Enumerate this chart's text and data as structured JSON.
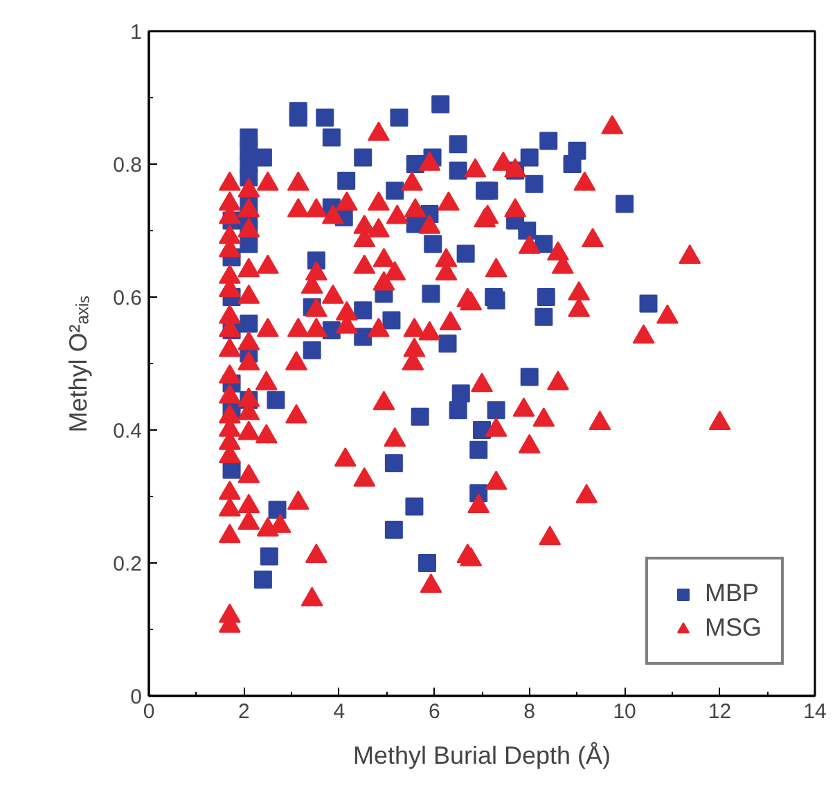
{
  "chart_data": {
    "type": "scatter",
    "xlabel": "Methyl Burial Depth (Å)",
    "ylabel": "Methyl O²ₐₓᵢₛ",
    "xlim": [
      0,
      14
    ],
    "xticks": [
      0,
      2,
      4,
      6,
      8,
      10,
      12,
      14
    ],
    "ylim": [
      0,
      1
    ],
    "yticks": [
      0,
      0.2,
      0.4,
      0.6,
      0.8,
      1
    ],
    "grid": false,
    "legend": "bottom right",
    "series": [
      {
        "name": "MBP",
        "color": "#2e45a0",
        "marker": "square",
        "x": [
          1.74,
          1.74,
          1.74,
          1.74,
          1.74,
          1.74,
          1.74,
          2.1,
          2.1,
          2.1,
          2.1,
          2.1,
          2.1,
          2.1,
          2.1,
          2.1,
          2.1,
          2.67,
          2.7,
          2.53,
          2.4,
          2.4,
          3.14,
          3.14,
          3.7,
          3.84,
          3.52,
          3.43,
          3.43,
          3.84,
          3.84,
          4.1,
          4.15,
          4.5,
          4.5,
          4.5,
          4.94,
          5.1,
          5.17,
          5.15,
          5.15,
          5.26,
          5.6,
          5.58,
          5.7,
          5.85,
          5.93,
          5.96,
          5.9,
          5.6,
          5.97,
          6.13,
          6.28,
          6.5,
          6.5,
          6.56,
          6.5,
          6.66,
          7.06,
          7.0,
          6.93,
          6.93,
          7.15,
          7.3,
          7.25,
          7.3,
          7.7,
          7.7,
          7.95,
          8.0,
          8.0,
          8.1,
          8.3,
          8.35,
          8.3,
          8.4,
          8.9,
          9.0,
          10.0,
          10.5
        ],
        "values": [
          0.715,
          0.66,
          0.6,
          0.55,
          0.47,
          0.43,
          0.34,
          0.84,
          0.82,
          0.8,
          0.78,
          0.74,
          0.71,
          0.68,
          0.56,
          0.515,
          0.445,
          0.445,
          0.28,
          0.21,
          0.175,
          0.81,
          0.88,
          0.87,
          0.87,
          0.84,
          0.655,
          0.585,
          0.52,
          0.55,
          0.735,
          0.72,
          0.775,
          0.81,
          0.58,
          0.54,
          0.605,
          0.565,
          0.76,
          0.35,
          0.25,
          0.87,
          0.8,
          0.285,
          0.42,
          0.2,
          0.605,
          0.81,
          0.725,
          0.71,
          0.68,
          0.89,
          0.53,
          0.83,
          0.79,
          0.455,
          0.43,
          0.665,
          0.76,
          0.4,
          0.37,
          0.305,
          0.76,
          0.43,
          0.6,
          0.595,
          0.79,
          0.715,
          0.7,
          0.81,
          0.48,
          0.77,
          0.68,
          0.6,
          0.57,
          0.835,
          0.8,
          0.82,
          0.74,
          0.59
        ]
      },
      {
        "name": "MSG",
        "color": "#e8222a",
        "marker": "triangle",
        "x": [
          1.7,
          1.7,
          1.7,
          1.7,
          1.7,
          1.7,
          1.7,
          1.7,
          1.7,
          1.7,
          1.7,
          1.7,
          1.7,
          1.7,
          1.7,
          1.7,
          1.7,
          1.7,
          1.7,
          1.7,
          1.7,
          2.1,
          2.1,
          2.1,
          2.1,
          2.1,
          2.1,
          2.1,
          2.1,
          2.1,
          2.1,
          2.1,
          2.1,
          2.1,
          2.47,
          2.47,
          2.5,
          2.5,
          2.5,
          2.5,
          2.76,
          3.1,
          3.1,
          3.14,
          3.14,
          3.14,
          3.14,
          3.43,
          3.43,
          3.52,
          3.52,
          3.52,
          3.52,
          3.52,
          3.87,
          3.87,
          4.13,
          4.16,
          4.16,
          4.16,
          4.53,
          4.53,
          4.53,
          4.53,
          4.83,
          4.83,
          4.83,
          4.83,
          4.94,
          4.94,
          4.94,
          5.17,
          5.22,
          5.17,
          5.53,
          5.55,
          5.58,
          5.58,
          5.6,
          5.9,
          5.9,
          5.9,
          5.93,
          6.25,
          6.25,
          6.3,
          6.34,
          6.7,
          6.7,
          6.77,
          6.77,
          6.86,
          6.93,
          7.0,
          7.06,
          7.12,
          7.3,
          7.3,
          7.3,
          7.45,
          7.7,
          7.7,
          7.88,
          8.0,
          8.0,
          8.3,
          8.43,
          8.6,
          8.6,
          8.7,
          9.04,
          9.04,
          9.16,
          9.2,
          9.33,
          9.48,
          9.74,
          10.4,
          10.9,
          11.37,
          12.0
        ],
        "values": [
          0.77,
          0.74,
          0.72,
          0.69,
          0.67,
          0.63,
          0.61,
          0.57,
          0.55,
          0.52,
          0.48,
          0.45,
          0.42,
          0.4,
          0.38,
          0.36,
          0.305,
          0.28,
          0.24,
          0.12,
          0.105,
          0.76,
          0.73,
          0.7,
          0.64,
          0.6,
          0.53,
          0.5,
          0.445,
          0.425,
          0.395,
          0.33,
          0.285,
          0.26,
          0.47,
          0.39,
          0.77,
          0.645,
          0.55,
          0.25,
          0.255,
          0.5,
          0.42,
          0.77,
          0.73,
          0.55,
          0.29,
          0.615,
          0.145,
          0.73,
          0.635,
          0.55,
          0.58,
          0.21,
          0.72,
          0.6,
          0.355,
          0.74,
          0.575,
          0.555,
          0.705,
          0.685,
          0.645,
          0.325,
          0.845,
          0.74,
          0.7,
          0.55,
          0.655,
          0.62,
          0.44,
          0.635,
          0.72,
          0.385,
          0.77,
          0.5,
          0.55,
          0.52,
          0.73,
          0.8,
          0.705,
          0.545,
          0.165,
          0.655,
          0.635,
          0.74,
          0.56,
          0.595,
          0.21,
          0.59,
          0.205,
          0.79,
          0.285,
          0.467,
          0.715,
          0.72,
          0.64,
          0.4,
          0.32,
          0.8,
          0.79,
          0.73,
          0.43,
          0.675,
          0.375,
          0.415,
          0.237,
          0.665,
          0.47,
          0.645,
          0.605,
          0.58,
          0.77,
          0.3,
          0.685,
          0.41,
          0.855,
          0.54,
          0.57,
          0.66,
          0.41
        ]
      }
    ]
  }
}
